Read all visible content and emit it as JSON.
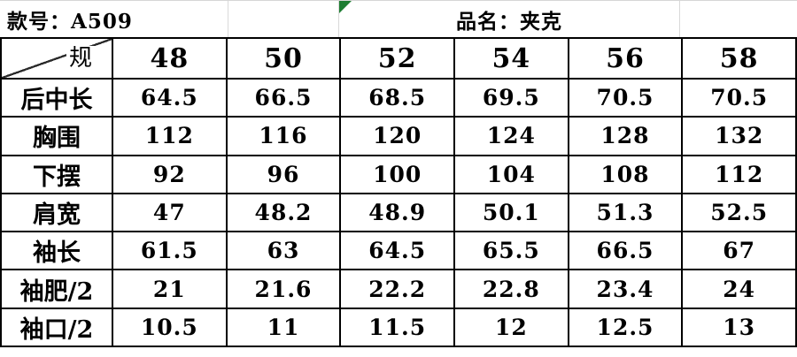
{
  "header": {
    "style_no": "款号：A509",
    "product": "品名：夹克"
  },
  "table": {
    "corner_label": "规",
    "sizes": [
      "48",
      "50",
      "52",
      "54",
      "56",
      "58"
    ],
    "rows": [
      {
        "label": "后中长",
        "values": [
          "64.5",
          "66.5",
          "68.5",
          "69.5",
          "70.5",
          "70.5"
        ]
      },
      {
        "label": "胸围",
        "values": [
          "112",
          "116",
          "120",
          "124",
          "128",
          "132"
        ]
      },
      {
        "label": "下摆",
        "values": [
          "92",
          "96",
          "100",
          "104",
          "108",
          "112"
        ]
      },
      {
        "label": "肩宽",
        "values": [
          "47",
          "48.2",
          "48.9",
          "50.1",
          "51.3",
          "52.5"
        ]
      },
      {
        "label": "袖长",
        "values": [
          "61.5",
          "63",
          "64.5",
          "65.5",
          "66.5",
          "67"
        ]
      },
      {
        "label": "袖肥/2",
        "values": [
          "21",
          "21.6",
          "22.2",
          "22.8",
          "23.4",
          "24"
        ]
      },
      {
        "label": "袖口/2",
        "values": [
          "10.5",
          "11",
          "11.5",
          "12",
          "12.5",
          "13"
        ]
      }
    ]
  },
  "colors": {
    "border": "#000000",
    "faint_gridline": "#d9d9d9",
    "flag_green": "#1e7d32",
    "background": "#ffffff",
    "text": "#000000"
  }
}
